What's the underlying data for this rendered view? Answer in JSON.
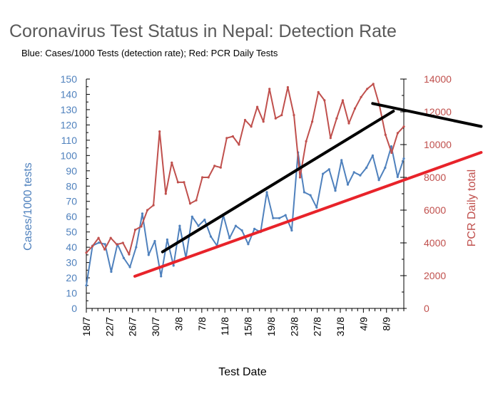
{
  "chart_data": {
    "type": "line",
    "title": "Coronavirus Test Status in Nepal: Detection Rate",
    "subtitle": "Blue: Cases/1000 Tests (detection rate); Red: PCR Daily Tests",
    "xlabel": "Test Date",
    "ylabel_left": "Cases/1000 tests",
    "ylabel_right": "PCR Daily total",
    "ylim_left": [
      0,
      150
    ],
    "ylim_right": [
      0,
      14000
    ],
    "yticks_left": [
      "0",
      "10",
      "20",
      "30",
      "40",
      "50",
      "60",
      "70",
      "80",
      "90",
      "100",
      "110",
      "120",
      "130",
      "140",
      "150"
    ],
    "yticks_right": [
      "0",
      "2000",
      "4000",
      "6000",
      "8000",
      "10000",
      "12000",
      "14000"
    ],
    "x_tick_labels": [
      "18/7",
      "22/7",
      "26/7",
      "30/7",
      "3/8",
      "7/8",
      "11/8",
      "15/8",
      "19/8",
      "23/8",
      "27/8",
      "31/8",
      "4/9",
      "8/9"
    ],
    "grid": false,
    "colors": {
      "blue": "#4f81bd",
      "red": "#c0504d",
      "black": "#000000",
      "trend_red": "#e8232a",
      "axis_left": "#4f81bd",
      "axis_right": "#c0504d"
    },
    "series": [
      {
        "axis": "left",
        "color": "#4f81bd",
        "values": [
          15,
          41,
          43,
          42,
          24,
          42,
          33,
          27,
          40,
          62,
          35,
          44,
          21,
          45,
          28,
          54,
          33,
          60,
          54,
          58,
          47,
          41,
          61,
          46,
          54,
          51,
          42,
          52,
          50,
          76,
          59,
          59,
          61,
          51,
          102,
          76,
          74,
          66,
          88,
          91,
          77,
          97,
          81,
          89,
          87,
          92,
          100,
          84,
          92,
          106,
          86,
          98
        ]
      },
      {
        "axis": "right",
        "color": "#c0504d",
        "values": [
          3400,
          3800,
          4300,
          3600,
          4300,
          3900,
          4000,
          3300,
          4800,
          5000,
          6000,
          6300,
          10800,
          7000,
          8900,
          7700,
          7700,
          6400,
          6600,
          8000,
          8000,
          8700,
          8600,
          10400,
          10500,
          10000,
          11500,
          11100,
          12300,
          11400,
          13400,
          11600,
          11800,
          13500,
          11800,
          8000,
          10200,
          11400,
          13200,
          12700,
          10400,
          11600,
          12700,
          11300,
          12200,
          12900,
          13400,
          13700,
          12400,
          10600,
          9500,
          10700,
          11100
        ]
      }
    ],
    "trendlines": [
      {
        "axis": "left",
        "color": "#000000",
        "x": [
          3.3,
          13.3
        ],
        "y": [
          37,
          129
        ]
      },
      {
        "axis": "left",
        "color": "#000000",
        "x": [
          12.4,
          17.1
        ],
        "y": [
          134,
          119
        ]
      },
      {
        "axis": "left",
        "color": "#e8232a",
        "x": [
          2.1,
          17.1
        ],
        "y": [
          21,
          102
        ]
      }
    ]
  }
}
